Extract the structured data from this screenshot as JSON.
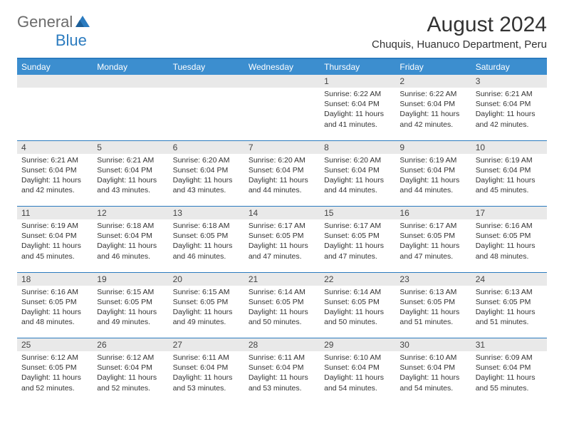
{
  "brand": {
    "general": "General",
    "blue": "Blue"
  },
  "header": {
    "title": "August 2024",
    "location": "Chuquis, Huanuco Department, Peru"
  },
  "colors": {
    "header_bg": "#3c8ecf",
    "header_text": "#ffffff",
    "accent_line": "#2b7bbf",
    "daynum_bg": "#e9e9e9",
    "text": "#333333",
    "logo_gray": "#6b6b6b",
    "logo_blue": "#2b7bbf"
  },
  "weekdays": [
    "Sunday",
    "Monday",
    "Tuesday",
    "Wednesday",
    "Thursday",
    "Friday",
    "Saturday"
  ],
  "weeks": [
    {
      "nums": [
        "",
        "",
        "",
        "",
        "1",
        "2",
        "3"
      ],
      "cells": [
        null,
        null,
        null,
        null,
        {
          "sunrise": "Sunrise: 6:22 AM",
          "sunset": "Sunset: 6:04 PM",
          "day1": "Daylight: 11 hours",
          "day2": "and 41 minutes."
        },
        {
          "sunrise": "Sunrise: 6:22 AM",
          "sunset": "Sunset: 6:04 PM",
          "day1": "Daylight: 11 hours",
          "day2": "and 42 minutes."
        },
        {
          "sunrise": "Sunrise: 6:21 AM",
          "sunset": "Sunset: 6:04 PM",
          "day1": "Daylight: 11 hours",
          "day2": "and 42 minutes."
        }
      ]
    },
    {
      "nums": [
        "4",
        "5",
        "6",
        "7",
        "8",
        "9",
        "10"
      ],
      "cells": [
        {
          "sunrise": "Sunrise: 6:21 AM",
          "sunset": "Sunset: 6:04 PM",
          "day1": "Daylight: 11 hours",
          "day2": "and 42 minutes."
        },
        {
          "sunrise": "Sunrise: 6:21 AM",
          "sunset": "Sunset: 6:04 PM",
          "day1": "Daylight: 11 hours",
          "day2": "and 43 minutes."
        },
        {
          "sunrise": "Sunrise: 6:20 AM",
          "sunset": "Sunset: 6:04 PM",
          "day1": "Daylight: 11 hours",
          "day2": "and 43 minutes."
        },
        {
          "sunrise": "Sunrise: 6:20 AM",
          "sunset": "Sunset: 6:04 PM",
          "day1": "Daylight: 11 hours",
          "day2": "and 44 minutes."
        },
        {
          "sunrise": "Sunrise: 6:20 AM",
          "sunset": "Sunset: 6:04 PM",
          "day1": "Daylight: 11 hours",
          "day2": "and 44 minutes."
        },
        {
          "sunrise": "Sunrise: 6:19 AM",
          "sunset": "Sunset: 6:04 PM",
          "day1": "Daylight: 11 hours",
          "day2": "and 44 minutes."
        },
        {
          "sunrise": "Sunrise: 6:19 AM",
          "sunset": "Sunset: 6:04 PM",
          "day1": "Daylight: 11 hours",
          "day2": "and 45 minutes."
        }
      ]
    },
    {
      "nums": [
        "11",
        "12",
        "13",
        "14",
        "15",
        "16",
        "17"
      ],
      "cells": [
        {
          "sunrise": "Sunrise: 6:19 AM",
          "sunset": "Sunset: 6:04 PM",
          "day1": "Daylight: 11 hours",
          "day2": "and 45 minutes."
        },
        {
          "sunrise": "Sunrise: 6:18 AM",
          "sunset": "Sunset: 6:04 PM",
          "day1": "Daylight: 11 hours",
          "day2": "and 46 minutes."
        },
        {
          "sunrise": "Sunrise: 6:18 AM",
          "sunset": "Sunset: 6:05 PM",
          "day1": "Daylight: 11 hours",
          "day2": "and 46 minutes."
        },
        {
          "sunrise": "Sunrise: 6:17 AM",
          "sunset": "Sunset: 6:05 PM",
          "day1": "Daylight: 11 hours",
          "day2": "and 47 minutes."
        },
        {
          "sunrise": "Sunrise: 6:17 AM",
          "sunset": "Sunset: 6:05 PM",
          "day1": "Daylight: 11 hours",
          "day2": "and 47 minutes."
        },
        {
          "sunrise": "Sunrise: 6:17 AM",
          "sunset": "Sunset: 6:05 PM",
          "day1": "Daylight: 11 hours",
          "day2": "and 47 minutes."
        },
        {
          "sunrise": "Sunrise: 6:16 AM",
          "sunset": "Sunset: 6:05 PM",
          "day1": "Daylight: 11 hours",
          "day2": "and 48 minutes."
        }
      ]
    },
    {
      "nums": [
        "18",
        "19",
        "20",
        "21",
        "22",
        "23",
        "24"
      ],
      "cells": [
        {
          "sunrise": "Sunrise: 6:16 AM",
          "sunset": "Sunset: 6:05 PM",
          "day1": "Daylight: 11 hours",
          "day2": "and 48 minutes."
        },
        {
          "sunrise": "Sunrise: 6:15 AM",
          "sunset": "Sunset: 6:05 PM",
          "day1": "Daylight: 11 hours",
          "day2": "and 49 minutes."
        },
        {
          "sunrise": "Sunrise: 6:15 AM",
          "sunset": "Sunset: 6:05 PM",
          "day1": "Daylight: 11 hours",
          "day2": "and 49 minutes."
        },
        {
          "sunrise": "Sunrise: 6:14 AM",
          "sunset": "Sunset: 6:05 PM",
          "day1": "Daylight: 11 hours",
          "day2": "and 50 minutes."
        },
        {
          "sunrise": "Sunrise: 6:14 AM",
          "sunset": "Sunset: 6:05 PM",
          "day1": "Daylight: 11 hours",
          "day2": "and 50 minutes."
        },
        {
          "sunrise": "Sunrise: 6:13 AM",
          "sunset": "Sunset: 6:05 PM",
          "day1": "Daylight: 11 hours",
          "day2": "and 51 minutes."
        },
        {
          "sunrise": "Sunrise: 6:13 AM",
          "sunset": "Sunset: 6:05 PM",
          "day1": "Daylight: 11 hours",
          "day2": "and 51 minutes."
        }
      ]
    },
    {
      "nums": [
        "25",
        "26",
        "27",
        "28",
        "29",
        "30",
        "31"
      ],
      "cells": [
        {
          "sunrise": "Sunrise: 6:12 AM",
          "sunset": "Sunset: 6:05 PM",
          "day1": "Daylight: 11 hours",
          "day2": "and 52 minutes."
        },
        {
          "sunrise": "Sunrise: 6:12 AM",
          "sunset": "Sunset: 6:04 PM",
          "day1": "Daylight: 11 hours",
          "day2": "and 52 minutes."
        },
        {
          "sunrise": "Sunrise: 6:11 AM",
          "sunset": "Sunset: 6:04 PM",
          "day1": "Daylight: 11 hours",
          "day2": "and 53 minutes."
        },
        {
          "sunrise": "Sunrise: 6:11 AM",
          "sunset": "Sunset: 6:04 PM",
          "day1": "Daylight: 11 hours",
          "day2": "and 53 minutes."
        },
        {
          "sunrise": "Sunrise: 6:10 AM",
          "sunset": "Sunset: 6:04 PM",
          "day1": "Daylight: 11 hours",
          "day2": "and 54 minutes."
        },
        {
          "sunrise": "Sunrise: 6:10 AM",
          "sunset": "Sunset: 6:04 PM",
          "day1": "Daylight: 11 hours",
          "day2": "and 54 minutes."
        },
        {
          "sunrise": "Sunrise: 6:09 AM",
          "sunset": "Sunset: 6:04 PM",
          "day1": "Daylight: 11 hours",
          "day2": "and 55 minutes."
        }
      ]
    }
  ]
}
